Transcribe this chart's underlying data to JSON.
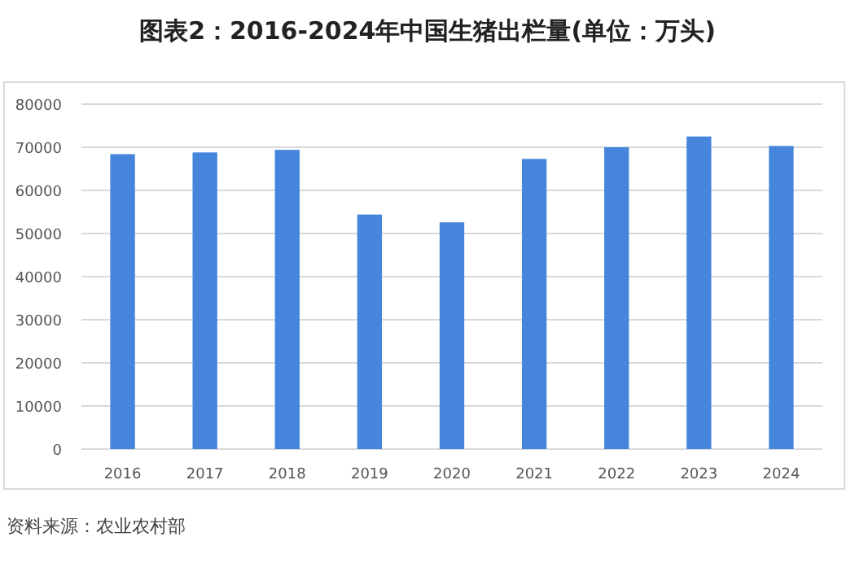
{
  "chart_data": {
    "type": "bar",
    "title": "图表2：2016-2024年中国生猪出栏量(单位：万头)",
    "categories": [
      "2016",
      "2017",
      "2018",
      "2019",
      "2020",
      "2021",
      "2022",
      "2023",
      "2024"
    ],
    "values": [
      68400,
      68800,
      69400,
      54400,
      52600,
      67300,
      70000,
      72500,
      70300
    ],
    "color": "#4585dc",
    "ylim": [
      0,
      80000
    ],
    "yticks": [
      0,
      10000,
      20000,
      30000,
      40000,
      50000,
      60000,
      70000,
      80000
    ],
    "grid": "y",
    "annotations": [
      "资料来源：农业农村部"
    ]
  }
}
